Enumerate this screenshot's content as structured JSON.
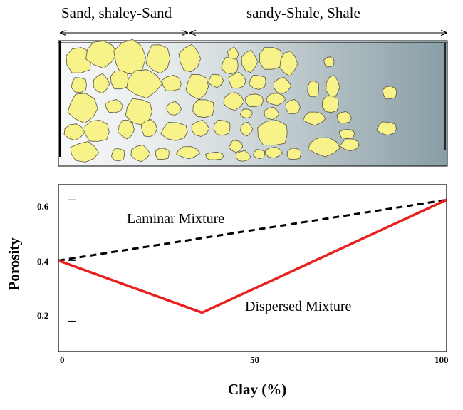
{
  "ranges": {
    "left_label": "Sand, shaley-Sand",
    "right_label": "sandy-Shale, Shale"
  },
  "chart_data": {
    "type": "line",
    "title": "",
    "xlabel": "Clay (%)",
    "ylabel": "Porosity",
    "xlim": [
      0,
      100
    ],
    "ylim": [
      0.1,
      0.65
    ],
    "x_ticks": [
      "0",
      "50",
      "100"
    ],
    "y_ticks": [
      "0.2",
      "0.4",
      "0.6"
    ],
    "y_tick_values": [
      0.2,
      0.4,
      0.6
    ],
    "x_tick_values": [
      0,
      50,
      100
    ],
    "series": [
      {
        "name": "Laminar Mixture",
        "x": [
          0,
          100
        ],
        "y": [
          0.4,
          0.6
        ],
        "color": "#000000",
        "style": "dashed"
      },
      {
        "name": "Dispersed Mixture",
        "x": [
          0,
          37,
          100
        ],
        "y": [
          0.4,
          0.228,
          0.6
        ],
        "color": "#e8211f",
        "style": "solid"
      }
    ]
  },
  "colors": {
    "grain_fill": "#f8f28a",
    "grain_stroke": "#555544",
    "matrix_light": "#f4f6f6",
    "matrix_dark": "#8ea3aa"
  }
}
